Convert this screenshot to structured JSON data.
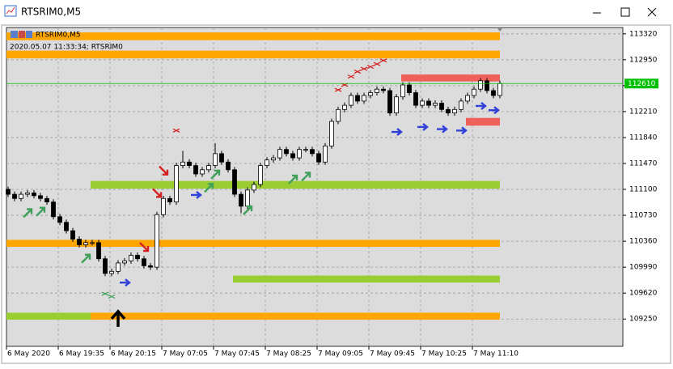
{
  "window": {
    "title": "RTSRIM0,M5"
  },
  "chart_data": {
    "type": "candlestick",
    "title": "RTSRIM0,M5",
    "subtitle": "2020.05.07 11:33:34; RTSRIM0",
    "categories": [
      "6 May 2020",
      null,
      null,
      null,
      null,
      null,
      null,
      null,
      "6 May 19:35",
      null,
      null,
      null,
      null,
      null,
      null,
      null,
      "6 May 20:15",
      null,
      null,
      null,
      null,
      null,
      null,
      null,
      "7 May 07:05",
      null,
      null,
      null,
      null,
      null,
      null,
      null,
      "7 May 07:45",
      null,
      null,
      null,
      null,
      null,
      null,
      null,
      "7 May 08:25",
      null,
      null,
      null,
      null,
      null,
      null,
      null,
      "7 May 09:05",
      null,
      null,
      null,
      null,
      null,
      null,
      null,
      "7 May 09:45",
      null,
      null,
      null,
      null,
      null,
      null,
      null,
      "7 May 10:25",
      null,
      null,
      null,
      null,
      null,
      null,
      null,
      "7 May 11:10",
      null,
      null,
      null,
      null
    ],
    "open": [
      111100,
      111030,
      110970,
      111030,
      111050,
      111010,
      110970,
      110920,
      110710,
      110630,
      110510,
      110390,
      110310,
      110340,
      110340,
      110110,
      109900,
      109930,
      110050,
      110080,
      110160,
      110110,
      110010,
      109990,
      110740,
      110970,
      110920,
      111440,
      111490,
      111440,
      111320,
      111380,
      111440,
      111610,
      111490,
      111380,
      111030,
      110860,
      111090,
      111170,
      111440,
      111520,
      111550,
      111670,
      111610,
      111550,
      111670,
      111670,
      111610,
      111490,
      111720,
      112070,
      112240,
      112300,
      112440,
      112360,
      112440,
      112480,
      112530,
      112510,
      112190,
      112420,
      112590,
      112480,
      112300,
      112360,
      112300,
      112330,
      112240,
      112190,
      112240,
      112360,
      112440,
      112530,
      112650,
      112510,
      112440
    ],
    "high": [
      111140,
      111070,
      111070,
      111090,
      111090,
      111050,
      111010,
      110960,
      110750,
      110670,
      110550,
      110430,
      110380,
      110380,
      110380,
      110150,
      109970,
      110090,
      110120,
      110200,
      110200,
      110150,
      110050,
      110780,
      111010,
      111010,
      111480,
      111650,
      111530,
      111480,
      111420,
      111480,
      111760,
      111650,
      111530,
      111420,
      111070,
      111130,
      111210,
      111480,
      111560,
      111590,
      111710,
      111710,
      111650,
      111710,
      111710,
      111710,
      111650,
      111760,
      112110,
      112280,
      112340,
      112480,
      112480,
      112480,
      112520,
      112570,
      112570,
      112550,
      112460,
      112630,
      112630,
      112520,
      112400,
      112400,
      112370,
      112370,
      112280,
      112280,
      112400,
      112480,
      112570,
      112690,
      112690,
      112550,
      112650
    ],
    "low": [
      110990,
      110930,
      110930,
      110990,
      110970,
      110930,
      110880,
      110670,
      110590,
      110470,
      110350,
      110270,
      110270,
      110300,
      110070,
      109860,
      109860,
      109890,
      110010,
      110040,
      110070,
      109970,
      109950,
      109950,
      110700,
      110880,
      110880,
      111400,
      111400,
      111280,
      111280,
      111340,
      111400,
      111450,
      111340,
      110990,
      110760,
      110820,
      111050,
      111130,
      111400,
      111480,
      111510,
      111570,
      111510,
      111510,
      111630,
      111570,
      111450,
      111450,
      111680,
      112030,
      112200,
      112260,
      112320,
      112320,
      112400,
      112440,
      112470,
      112150,
      112150,
      112380,
      112440,
      112260,
      112260,
      112260,
      112260,
      112200,
      112150,
      112150,
      112200,
      112320,
      112400,
      112490,
      112470,
      112400,
      112400
    ],
    "close": [
      111030,
      110970,
      111030,
      111050,
      111010,
      110970,
      110920,
      110710,
      110630,
      110510,
      110390,
      110310,
      110340,
      110340,
      110110,
      109900,
      109930,
      110050,
      110080,
      110160,
      110110,
      110010,
      109990,
      110740,
      110970,
      110920,
      111440,
      111490,
      111440,
      111320,
      111380,
      111440,
      111610,
      111490,
      111380,
      111030,
      110860,
      111090,
      111170,
      111440,
      111520,
      111550,
      111670,
      111610,
      111550,
      111670,
      111670,
      111610,
      111490,
      111720,
      112070,
      112240,
      112300,
      112440,
      112360,
      112440,
      112480,
      112530,
      112510,
      112190,
      112420,
      112590,
      112480,
      112300,
      112360,
      112300,
      112330,
      112240,
      112190,
      112240,
      112360,
      112440,
      112530,
      112650,
      112510,
      112440,
      112610
    ],
    "ylim": [
      108860,
      113410
    ],
    "yticks": [
      113320,
      112950,
      112580,
      112210,
      111840,
      111470,
      111100,
      110730,
      110360,
      109990,
      109620,
      109250
    ],
    "grid": true,
    "last_price": 112610,
    "last_price_color": "#00c000",
    "zones": [
      {
        "from": 0,
        "to": 76,
        "low": 113230,
        "high": 113340,
        "color": "#ffa500"
      },
      {
        "from": 0,
        "to": 76,
        "low": 112970,
        "high": 113080,
        "color": "#ffa500"
      },
      {
        "from": 0,
        "to": 76,
        "low": 110280,
        "high": 110380,
        "color": "#ffa500"
      },
      {
        "from": 0,
        "to": 13,
        "low": 109240,
        "high": 109340,
        "color": "#9acd32"
      },
      {
        "from": 13,
        "to": 76,
        "low": 109240,
        "high": 109340,
        "color": "#ffa500"
      },
      {
        "from": 13,
        "to": 76,
        "low": 111110,
        "high": 111220,
        "color": "#9acd32"
      },
      {
        "from": 35,
        "to": 76,
        "low": 109770,
        "high": 109870,
        "color": "#9acd32"
      },
      {
        "from": 61,
        "to": 76,
        "low": 112640,
        "high": 112740,
        "color": "#f0605a"
      },
      {
        "from": 71,
        "to": 76,
        "low": 112010,
        "high": 112120,
        "color": "#f0605a"
      }
    ],
    "markers": [
      {
        "shape": "arrow-up-right",
        "color": "#3fa05c",
        "index": [
          3,
          5,
          12,
          31,
          32,
          37,
          44,
          46
        ],
        "values": [
          110760,
          110780,
          110110,
          111120,
          111310,
          110800,
          111240,
          111280
        ]
      },
      {
        "shape": "arrow-down-right",
        "color": "#d42020",
        "index": [
          24,
          23,
          21
        ],
        "values": [
          111370,
          111050,
          110280
        ]
      },
      {
        "shape": "arrow-right",
        "color": "#3040d8",
        "index": [
          18,
          29,
          60,
          64,
          67,
          70,
          73,
          75
        ],
        "values": [
          109770,
          111020,
          111920,
          111990,
          111960,
          111940,
          112290,
          112230
        ]
      },
      {
        "shape": "cross",
        "color": "#d42020",
        "index": [
          26,
          51,
          52,
          53,
          54,
          55,
          56,
          57,
          58
        ],
        "values": [
          111940,
          112520,
          112590,
          112710,
          112780,
          112820,
          112850,
          112890,
          112940
        ]
      },
      {
        "shape": "cross",
        "color": "#3fa05c",
        "index": [
          15,
          16
        ],
        "values": [
          109610,
          109570
        ]
      },
      {
        "shape": "arrow-up",
        "color": "#000000",
        "index": [
          17
        ],
        "values": [
          109300
        ]
      }
    ]
  }
}
